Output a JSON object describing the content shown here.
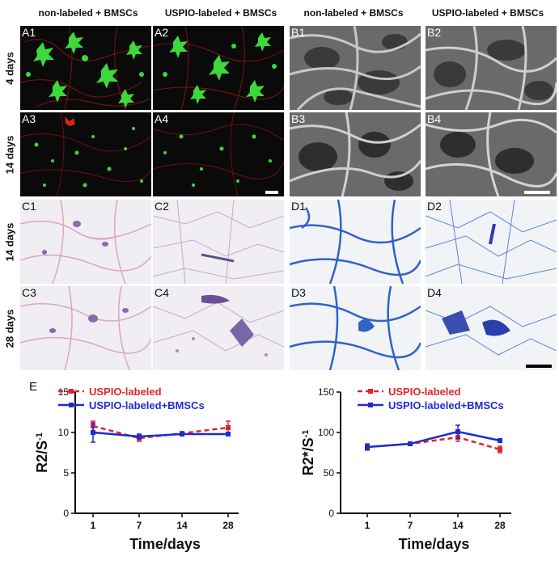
{
  "columns": [
    "non-labeled + BMSCs",
    "USPIO-labeled + BMSCs",
    "non-labeled + BMSCs",
    "USPIO-labeled + BMSCs"
  ],
  "rows": [
    "4 days",
    "14 days",
    "14 days",
    "28 days"
  ],
  "panels": {
    "A1": "A1",
    "A2": "A2",
    "A3": "A3",
    "A4": "A4",
    "B1": "B1",
    "B2": "B2",
    "B3": "B3",
    "B4": "B4",
    "C1": "C1",
    "C2": "C2",
    "C3": "C3",
    "C4": "C4",
    "D1": "D1",
    "D2": "D2",
    "D3": "D3",
    "D4": "D4"
  },
  "panel_e_label": "E",
  "colors": {
    "uspio": "#e0252a",
    "uspio_bmsc": "#1f2bd0",
    "fluor_green": "#3cd83c",
    "fluor_red": "#b81818",
    "he_pink": "#d9a6c6",
    "he_purple": "#6a4f9a",
    "toluidine_blue": "#2f63c8"
  },
  "chart_data": [
    {
      "type": "line",
      "ylabel": "R2/S",
      "ylabel_sup": "-1",
      "xlabel": "Time/days",
      "categories": [
        "1",
        "7",
        "14",
        "28"
      ],
      "ylim": [
        0,
        15
      ],
      "yticks": [
        0,
        5,
        10,
        15
      ],
      "legend_position": "top",
      "series": [
        {
          "name": "USPIO-labeled",
          "values": [
            10.8,
            9.3,
            9.9,
            10.6
          ],
          "errors": [
            0.6,
            0.4,
            0.2,
            0.8
          ],
          "color": "#e0252a",
          "style": "dashed"
        },
        {
          "name": "USPIO-labeled+BMSCs",
          "values": [
            10.0,
            9.5,
            9.8,
            9.8
          ],
          "errors": [
            1.2,
            0.3,
            0.2,
            0.2
          ],
          "color": "#1f2bd0",
          "style": "solid"
        }
      ]
    },
    {
      "type": "line",
      "ylabel": "R2*/S",
      "ylabel_sup": "-1",
      "xlabel": "Time/days",
      "categories": [
        "1",
        "7",
        "14",
        "28"
      ],
      "ylim": [
        0,
        150
      ],
      "yticks": [
        0,
        50,
        100,
        150
      ],
      "legend_position": "top",
      "series": [
        {
          "name": "USPIO-labeled",
          "values": [
            82,
            86,
            94,
            79
          ],
          "errors": [
            4,
            2,
            5,
            4
          ],
          "color": "#e0252a",
          "style": "dashed"
        },
        {
          "name": "USPIO-labeled+BMSCs",
          "values": [
            82,
            86,
            101,
            90
          ],
          "errors": [
            3,
            1,
            8,
            2
          ],
          "color": "#1f2bd0",
          "style": "solid"
        }
      ]
    }
  ]
}
